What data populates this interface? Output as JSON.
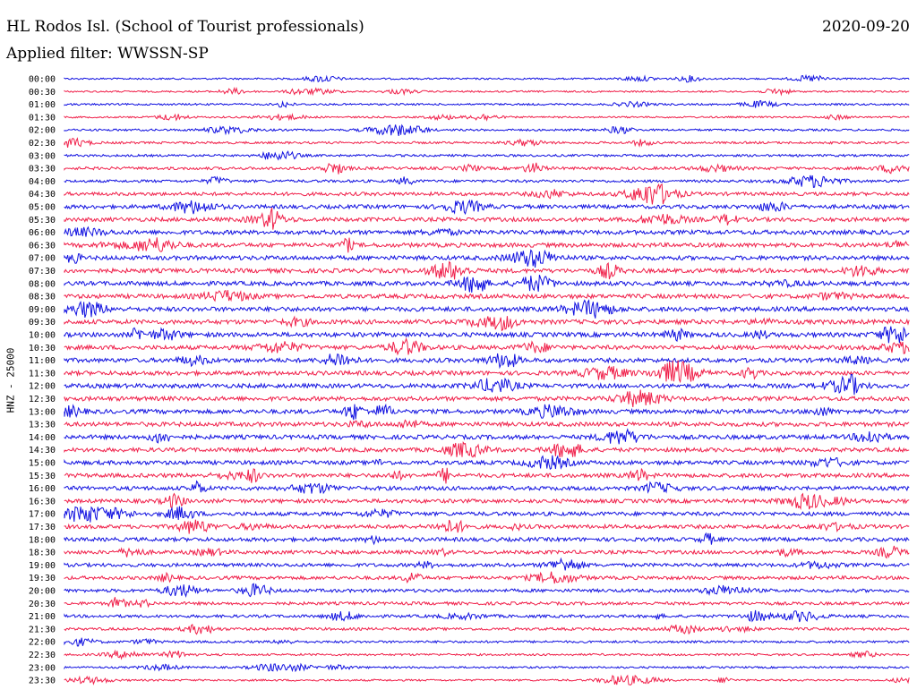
{
  "header": {
    "station": "HL Rodos Isl. (School of Tourist professionals)",
    "date": "2020-09-20",
    "filter": "Applied filter: WWSSN-SP",
    "channel_label": "HNZ - 25000"
  },
  "colors": {
    "even_trace": "#1010e0",
    "odd_trace": "#f0204a",
    "text": "#000000",
    "background": "#ffffff"
  },
  "chart_data": {
    "type": "line",
    "title": "HL Rodos Isl. (School of Tourist professionals)",
    "ylabel": "HNZ - 25000",
    "xlabel": "",
    "row_labels": [
      "00:00",
      "00:30",
      "01:00",
      "01:30",
      "02:00",
      "02:30",
      "03:00",
      "03:30",
      "04:00",
      "04:30",
      "05:00",
      "05:30",
      "06:00",
      "06:30",
      "07:00",
      "07:30",
      "08:00",
      "08:30",
      "09:00",
      "09:30",
      "10:00",
      "10:30",
      "11:00",
      "11:30",
      "12:00",
      "12:30",
      "13:00",
      "13:30",
      "14:00",
      "14:30",
      "15:00",
      "15:30",
      "16:00",
      "16:30",
      "17:00",
      "17:30",
      "18:00",
      "18:30",
      "19:00",
      "19:30",
      "20:00",
      "20:30",
      "21:00",
      "21:30",
      "22:00",
      "22:30",
      "23:00",
      "23:30"
    ],
    "series_colors": [
      "#1010e0",
      "#f0204a"
    ],
    "noise_level": [
      0.15,
      0.15,
      0.2,
      0.15,
      0.25,
      0.3,
      0.3,
      0.45,
      0.4,
      0.6,
      0.7,
      0.75,
      0.8,
      0.8,
      0.8,
      0.8,
      0.8,
      0.8,
      0.85,
      0.85,
      0.85,
      0.8,
      0.8,
      0.8,
      0.8,
      0.8,
      0.8,
      0.8,
      0.8,
      0.75,
      0.75,
      0.75,
      0.75,
      0.7,
      0.7,
      0.7,
      0.7,
      0.65,
      0.6,
      0.6,
      0.55,
      0.5,
      0.45,
      0.4,
      0.3,
      0.25,
      0.2,
      0.2
    ]
  }
}
